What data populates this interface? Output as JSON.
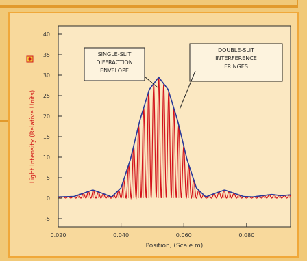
{
  "chart_data": {
    "type": "line",
    "xlabel": "Position, (Scale m)",
    "ylabel": "Light Intensity (Relative Units)",
    "x_ticks": [
      "0.020",
      "0.040",
      "0.060",
      "0.080"
    ],
    "y_ticks": [
      "40",
      "35",
      "30",
      "25",
      "20",
      "15",
      "10",
      "5",
      "0",
      "-5"
    ],
    "xlim": [
      0.02,
      0.094
    ],
    "ylim": [
      -7,
      42
    ],
    "grid": false,
    "annotations": [
      {
        "id": "envelope",
        "lines": [
          "SINGLE-SLIT",
          "DIFFRACTION",
          "ENVELOPE"
        ]
      },
      {
        "id": "fringes",
        "lines": [
          "DOUBLE-SLIT",
          "INTERFERENCE",
          "FRINGES"
        ]
      }
    ],
    "series": [
      {
        "style": "envelope",
        "x": [
          0.02,
          0.025,
          0.028,
          0.031,
          0.034,
          0.037,
          0.04,
          0.043,
          0.046,
          0.049,
          0.052,
          0.055,
          0.058,
          0.061,
          0.064,
          0.067,
          0.07,
          0.073,
          0.076,
          0.079,
          0.082,
          0.085,
          0.088,
          0.091,
          0.094
        ],
        "y": [
          0.3,
          0.4,
          1.2,
          2.0,
          1.2,
          0.3,
          2.5,
          9.5,
          19.0,
          26.5,
          29.5,
          26.5,
          19.0,
          9.5,
          2.5,
          0.3,
          1.2,
          2.0,
          1.2,
          0.4,
          0.3,
          0.6,
          0.9,
          0.6,
          0.8
        ]
      },
      {
        "style": "fringes",
        "fringe_period": 0.0016,
        "center": 0.052
      }
    ]
  }
}
